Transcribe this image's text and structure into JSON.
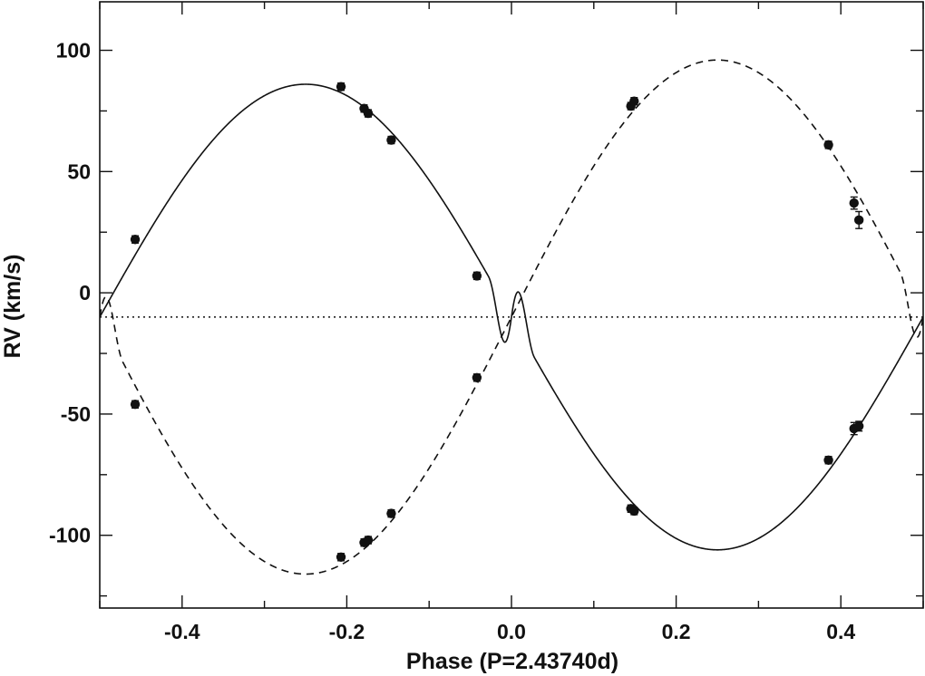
{
  "chart_data": {
    "type": "scatter",
    "xlabel": "Phase (P=2.43740d)",
    "ylabel": "RV (km/s)",
    "xlim": [
      -0.5,
      0.5
    ],
    "ylim": [
      -130,
      120
    ],
    "xticks": [
      -0.4,
      -0.2,
      0.0,
      0.2,
      0.4
    ],
    "xtick_labels": [
      "-0.4",
      "-0.2",
      "0.0",
      "0.2",
      "0.4"
    ],
    "yticks": [
      -100,
      -50,
      0,
      50,
      100
    ],
    "ytick_labels": [
      "-100",
      "-50",
      "0",
      "50",
      "100"
    ],
    "grid": false,
    "legend": "none",
    "systemic_velocity": -10,
    "orbit": {
      "period_days": 2.4374,
      "primary_semi_amplitude": 96,
      "secondary_semi_amplitude": 106
    },
    "series": [
      {
        "style": "solid curve with filled circles",
        "color": "#111111",
        "points": [
          {
            "x": -0.457,
            "y": 22,
            "err": 1.5
          },
          {
            "x": -0.207,
            "y": 85,
            "err": 1.5
          },
          {
            "x": -0.179,
            "y": 76,
            "err": 1.5
          },
          {
            "x": -0.174,
            "y": 74,
            "err": 1.5
          },
          {
            "x": -0.146,
            "y": 63,
            "err": 1.5
          },
          {
            "x": -0.042,
            "y": 7,
            "err": 1.5
          },
          {
            "x": 0.145,
            "y": -89,
            "err": 1.5
          },
          {
            "x": 0.149,
            "y": -90,
            "err": 1.5
          },
          {
            "x": 0.385,
            "y": -69,
            "err": 1.5
          },
          {
            "x": 0.416,
            "y": -56,
            "err": 2.5
          },
          {
            "x": 0.422,
            "y": -55,
            "err": 2.0
          }
        ]
      },
      {
        "style": "dashed curve with filled circles",
        "color": "#111111",
        "points": [
          {
            "x": -0.457,
            "y": -46,
            "err": 1.5
          },
          {
            "x": -0.207,
            "y": -109,
            "err": 1.5
          },
          {
            "x": -0.179,
            "y": -103,
            "err": 1.5
          },
          {
            "x": -0.174,
            "y": -102,
            "err": 1.5
          },
          {
            "x": -0.146,
            "y": -91,
            "err": 1.5
          },
          {
            "x": -0.042,
            "y": -35,
            "err": 1.5
          },
          {
            "x": 0.145,
            "y": 77,
            "err": 1.5
          },
          {
            "x": 0.149,
            "y": 79,
            "err": 1.5
          },
          {
            "x": 0.385,
            "y": 61,
            "err": 1.5
          },
          {
            "x": 0.416,
            "y": 37,
            "err": 2.5
          },
          {
            "x": 0.422,
            "y": 30,
            "err": 3.5
          }
        ]
      }
    ]
  }
}
